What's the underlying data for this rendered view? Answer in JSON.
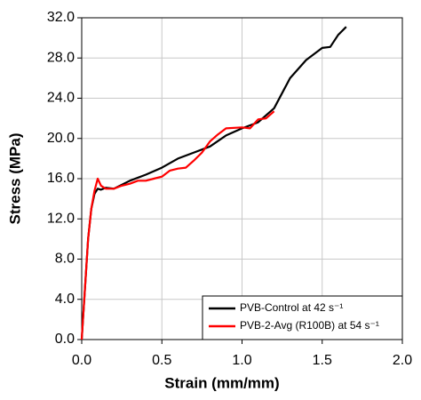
{
  "chart_data": {
    "type": "line",
    "xlabel": "Strain (mm/mm)",
    "ylabel": "Stress (MPa)",
    "xlim": [
      0,
      2
    ],
    "ylim": [
      0,
      32
    ],
    "xticks": [
      {
        "value": 0,
        "label": "0.0"
      },
      {
        "value": 0.5,
        "label": "0.5"
      },
      {
        "value": 1,
        "label": "1.0"
      },
      {
        "value": 1.5,
        "label": "1.5"
      },
      {
        "value": 2,
        "label": "2.0"
      }
    ],
    "yticks": [
      {
        "value": 0,
        "label": "0.0"
      },
      {
        "value": 4,
        "label": "4.0"
      },
      {
        "value": 8,
        "label": "8.0"
      },
      {
        "value": 12,
        "label": "12.0"
      },
      {
        "value": 16,
        "label": "16.0"
      },
      {
        "value": 20,
        "label": "20.0"
      },
      {
        "value": 24,
        "label": "24.0"
      },
      {
        "value": 28,
        "label": "28.0"
      },
      {
        "value": 32,
        "label": "32.0"
      }
    ],
    "grid": true,
    "legend": "lower right",
    "series": [
      {
        "name": "PVB-Control at 42 s⁻¹",
        "color": "#000000",
        "x": [
          0,
          0.02,
          0.04,
          0.06,
          0.08,
          0.1,
          0.12,
          0.15,
          0.2,
          0.3,
          0.4,
          0.5,
          0.6,
          0.7,
          0.8,
          0.9,
          1.0,
          1.1,
          1.2,
          1.25,
          1.3,
          1.4,
          1.5,
          1.55,
          1.6,
          1.65
        ],
        "values": [
          0,
          5,
          10,
          13,
          14.5,
          15,
          14.9,
          15.1,
          15,
          15.8,
          16.4,
          17.1,
          18,
          18.6,
          19.2,
          20.3,
          21,
          21.6,
          23,
          24.5,
          26,
          27.8,
          29,
          29.1,
          30.3,
          31.1
        ]
      },
      {
        "name": "PVB-2-Avg (R100B) at 54 s⁻¹",
        "color": "#ff0000",
        "x": [
          0,
          0.02,
          0.04,
          0.06,
          0.08,
          0.1,
          0.12,
          0.15,
          0.2,
          0.25,
          0.3,
          0.35,
          0.4,
          0.45,
          0.5,
          0.55,
          0.6,
          0.65,
          0.7,
          0.75,
          0.8,
          0.85,
          0.9,
          1.0,
          1.05,
          1.1,
          1.15,
          1.2
        ],
        "values": [
          0,
          5,
          10,
          13,
          14.8,
          16,
          15.3,
          15,
          15,
          15.3,
          15.5,
          15.8,
          15.8,
          16,
          16.2,
          16.8,
          17,
          17.1,
          17.8,
          18.6,
          19.7,
          20.4,
          21,
          21.1,
          21,
          21.9,
          22,
          22.7
        ]
      }
    ]
  }
}
